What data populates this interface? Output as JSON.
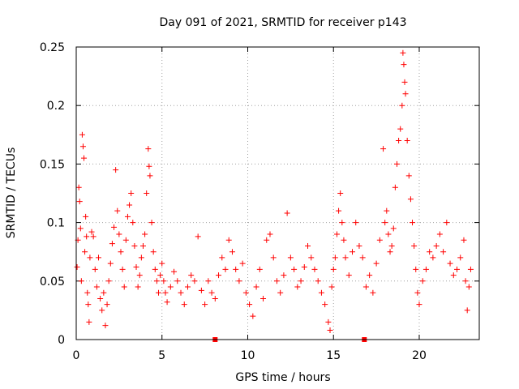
{
  "chart_data": {
    "type": "scatter",
    "title": "Day 091 of 2021, SRMTID for receiver p143",
    "xlabel": "GPS time / hours",
    "ylabel": "SRMTID / TECUs",
    "xlim": [
      0,
      23.5
    ],
    "ylim": [
      0,
      0.25
    ],
    "xticks": [
      0,
      5,
      10,
      15,
      20
    ],
    "xtick_labels": [
      "0",
      "5",
      "10",
      "15",
      "20"
    ],
    "yticks": [
      0,
      0.05,
      0.1,
      0.15,
      0.2,
      0.25
    ],
    "ytick_labels": [
      "0",
      "0.05",
      "0.1",
      "0.15",
      "0.2",
      "0.25"
    ],
    "grid": true,
    "marker": "+",
    "color": "#ff0000",
    "gap_markers_x": [
      8.1,
      16.8
    ],
    "series": [
      {
        "name": "SRMTID",
        "points": [
          [
            0.05,
            0.062
          ],
          [
            0.1,
            0.085
          ],
          [
            0.15,
            0.13
          ],
          [
            0.2,
            0.118
          ],
          [
            0.25,
            0.095
          ],
          [
            0.3,
            0.05
          ],
          [
            0.35,
            0.175
          ],
          [
            0.4,
            0.165
          ],
          [
            0.45,
            0.155
          ],
          [
            0.5,
            0.075
          ],
          [
            0.55,
            0.105
          ],
          [
            0.6,
            0.088
          ],
          [
            0.65,
            0.04
          ],
          [
            0.7,
            0.03
          ],
          [
            0.75,
            0.015
          ],
          [
            0.8,
            0.07
          ],
          [
            0.9,
            0.092
          ],
          [
            1.0,
            0.088
          ],
          [
            1.1,
            0.06
          ],
          [
            1.2,
            0.045
          ],
          [
            1.3,
            0.07
          ],
          [
            1.4,
            0.035
          ],
          [
            1.5,
            0.025
          ],
          [
            1.6,
            0.04
          ],
          [
            1.7,
            0.012
          ],
          [
            1.8,
            0.03
          ],
          [
            1.9,
            0.05
          ],
          [
            2.0,
            0.065
          ],
          [
            2.1,
            0.082
          ],
          [
            2.2,
            0.096
          ],
          [
            2.3,
            0.145
          ],
          [
            2.4,
            0.11
          ],
          [
            2.5,
            0.09
          ],
          [
            2.6,
            0.075
          ],
          [
            2.7,
            0.06
          ],
          [
            2.8,
            0.045
          ],
          [
            2.9,
            0.085
          ],
          [
            3.0,
            0.105
          ],
          [
            3.1,
            0.115
          ],
          [
            3.2,
            0.125
          ],
          [
            3.3,
            0.1
          ],
          [
            3.4,
            0.08
          ],
          [
            3.5,
            0.062
          ],
          [
            3.6,
            0.045
          ],
          [
            3.7,
            0.055
          ],
          [
            3.8,
            0.07
          ],
          [
            3.9,
            0.08
          ],
          [
            4.0,
            0.09
          ],
          [
            4.1,
            0.125
          ],
          [
            4.2,
            0.163
          ],
          [
            4.25,
            0.148
          ],
          [
            4.3,
            0.14
          ],
          [
            4.4,
            0.1
          ],
          [
            4.5,
            0.075
          ],
          [
            4.6,
            0.06
          ],
          [
            4.7,
            0.05
          ],
          [
            4.8,
            0.04
          ],
          [
            4.9,
            0.055
          ],
          [
            5.0,
            0.065
          ],
          [
            5.1,
            0.05
          ],
          [
            5.2,
            0.04
          ],
          [
            5.3,
            0.032
          ],
          [
            5.5,
            0.045
          ],
          [
            5.7,
            0.058
          ],
          [
            5.9,
            0.05
          ],
          [
            6.1,
            0.04
          ],
          [
            6.3,
            0.03
          ],
          [
            6.5,
            0.045
          ],
          [
            6.7,
            0.055
          ],
          [
            6.9,
            0.05
          ],
          [
            7.1,
            0.088
          ],
          [
            7.3,
            0.042
          ],
          [
            7.5,
            0.03
          ],
          [
            7.7,
            0.05
          ],
          [
            7.9,
            0.04
          ],
          [
            8.1,
            0.035
          ],
          [
            8.3,
            0.055
          ],
          [
            8.5,
            0.07
          ],
          [
            8.7,
            0.06
          ],
          [
            8.9,
            0.085
          ],
          [
            9.1,
            0.075
          ],
          [
            9.3,
            0.06
          ],
          [
            9.5,
            0.05
          ],
          [
            9.7,
            0.065
          ],
          [
            9.9,
            0.04
          ],
          [
            10.1,
            0.03
          ],
          [
            10.3,
            0.02
          ],
          [
            10.5,
            0.045
          ],
          [
            10.7,
            0.06
          ],
          [
            10.9,
            0.035
          ],
          [
            11.1,
            0.085
          ],
          [
            11.3,
            0.09
          ],
          [
            11.5,
            0.07
          ],
          [
            11.7,
            0.05
          ],
          [
            11.9,
            0.04
          ],
          [
            12.1,
            0.055
          ],
          [
            12.3,
            0.108
          ],
          [
            12.5,
            0.07
          ],
          [
            12.7,
            0.06
          ],
          [
            12.9,
            0.045
          ],
          [
            13.1,
            0.05
          ],
          [
            13.3,
            0.062
          ],
          [
            13.5,
            0.08
          ],
          [
            13.7,
            0.07
          ],
          [
            13.9,
            0.06
          ],
          [
            14.1,
            0.05
          ],
          [
            14.3,
            0.04
          ],
          [
            14.5,
            0.03
          ],
          [
            14.7,
            0.015
          ],
          [
            14.8,
            0.008
          ],
          [
            14.9,
            0.045
          ],
          [
            15.0,
            0.06
          ],
          [
            15.1,
            0.07
          ],
          [
            15.2,
            0.09
          ],
          [
            15.3,
            0.11
          ],
          [
            15.4,
            0.125
          ],
          [
            15.5,
            0.1
          ],
          [
            15.6,
            0.085
          ],
          [
            15.7,
            0.07
          ],
          [
            15.9,
            0.055
          ],
          [
            16.1,
            0.075
          ],
          [
            16.3,
            0.1
          ],
          [
            16.5,
            0.08
          ],
          [
            16.7,
            0.07
          ],
          [
            16.9,
            0.045
          ],
          [
            17.1,
            0.055
          ],
          [
            17.3,
            0.04
          ],
          [
            17.5,
            0.065
          ],
          [
            17.7,
            0.085
          ],
          [
            17.9,
            0.163
          ],
          [
            18.0,
            0.1
          ],
          [
            18.1,
            0.11
          ],
          [
            18.2,
            0.09
          ],
          [
            18.3,
            0.075
          ],
          [
            18.4,
            0.08
          ],
          [
            18.5,
            0.095
          ],
          [
            18.6,
            0.13
          ],
          [
            18.7,
            0.15
          ],
          [
            18.8,
            0.17
          ],
          [
            18.9,
            0.18
          ],
          [
            19.0,
            0.2
          ],
          [
            19.05,
            0.245
          ],
          [
            19.1,
            0.235
          ],
          [
            19.15,
            0.22
          ],
          [
            19.2,
            0.21
          ],
          [
            19.3,
            0.17
          ],
          [
            19.4,
            0.14
          ],
          [
            19.5,
            0.12
          ],
          [
            19.6,
            0.1
          ],
          [
            19.7,
            0.08
          ],
          [
            19.8,
            0.06
          ],
          [
            19.9,
            0.04
          ],
          [
            20.0,
            0.03
          ],
          [
            20.2,
            0.05
          ],
          [
            20.4,
            0.06
          ],
          [
            20.6,
            0.075
          ],
          [
            20.8,
            0.07
          ],
          [
            21.0,
            0.08
          ],
          [
            21.2,
            0.09
          ],
          [
            21.4,
            0.075
          ],
          [
            21.6,
            0.1
          ],
          [
            21.8,
            0.065
          ],
          [
            22.0,
            0.055
          ],
          [
            22.2,
            0.06
          ],
          [
            22.4,
            0.07
          ],
          [
            22.6,
            0.085
          ],
          [
            22.7,
            0.05
          ],
          [
            22.8,
            0.025
          ],
          [
            22.9,
            0.045
          ],
          [
            23.0,
            0.06
          ]
        ]
      }
    ]
  }
}
